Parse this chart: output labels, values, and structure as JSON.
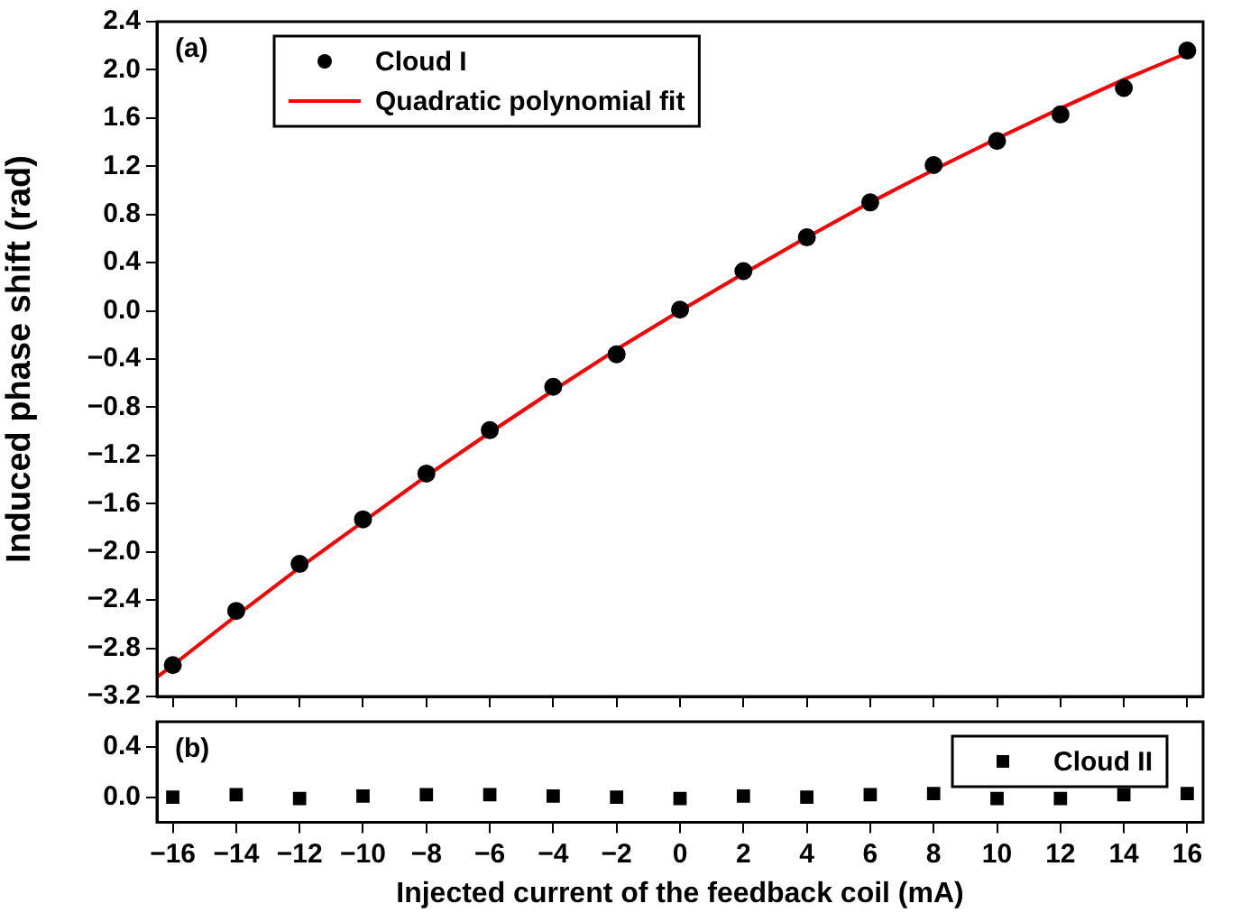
{
  "chart_data": [
    {
      "type": "scatter",
      "annotations": [
        "(a)"
      ],
      "ylabel": "Induced phase shift (rad)",
      "xlim": [
        -16.5,
        16.5
      ],
      "xticks": [
        -16,
        -14,
        -12,
        -10,
        -8,
        -6,
        -4,
        -2,
        0,
        2,
        4,
        6,
        8,
        10,
        12,
        14,
        16
      ],
      "ylim": [
        -3.2,
        2.4
      ],
      "yticks": [
        -3.2,
        -2.8,
        -2.4,
        {
          "value": -2,
          "label": "−2.0"
        },
        -1.6,
        -1.2,
        -0.8,
        -0.4,
        {
          "value": 0,
          "label": "0.0"
        },
        0.4,
        0.8,
        1.2,
        1.6,
        {
          "value": 2,
          "label": "2.0"
        },
        2.4
      ],
      "tick_labels": "y",
      "legend": "top",
      "grid": false,
      "series": [
        {
          "name": "Cloud I",
          "marker": "circle",
          "color": "#000000",
          "x": [
            -16,
            -14,
            -12,
            -10,
            -8,
            -6,
            -4,
            -2,
            0,
            2,
            4,
            6,
            8,
            10,
            12,
            14,
            16
          ],
          "values": [
            -2.94,
            -2.49,
            -2.1,
            -1.73,
            -1.35,
            -0.99,
            -0.63,
            -0.36,
            0.01,
            0.33,
            0.61,
            0.9,
            1.21,
            1.41,
            1.63,
            1.85,
            2.16
          ]
        },
        {
          "name": "Quadratic polynomial fit",
          "type": "line",
          "marker": "none",
          "color": "#ff0000",
          "x": [
            -16.5,
            -16,
            -14,
            -12,
            -10,
            -8,
            -6,
            -4,
            -2,
            0,
            2,
            4,
            6,
            8,
            10,
            12,
            14,
            16
          ],
          "values": [
            -3.04,
            -2.94,
            -2.53,
            -2.13,
            -1.75,
            -1.37,
            -1.01,
            -0.66,
            -0.32,
            0.0,
            0.31,
            0.61,
            0.9,
            1.17,
            1.43,
            1.68,
            1.92,
            2.14
          ]
        }
      ]
    },
    {
      "type": "scatter",
      "annotations": [
        "(b)"
      ],
      "xlabel": "Injected current of the feedback coil (mA)",
      "xlim": [
        -16.5,
        16.5
      ],
      "xticks": [
        -16,
        -14,
        -12,
        -10,
        -8,
        -6,
        -4,
        -2,
        0,
        2,
        4,
        6,
        8,
        10,
        12,
        14,
        16
      ],
      "ylim": [
        -0.2,
        0.6
      ],
      "yticks": [
        {
          "value": 0,
          "label": "0.0"
        },
        0.4
      ],
      "legend": "top right",
      "grid": false,
      "series": [
        {
          "name": "Cloud II",
          "marker": "square",
          "color": "#000000",
          "x": [
            -16,
            -14,
            -12,
            -10,
            -8,
            -6,
            -4,
            -2,
            0,
            2,
            4,
            6,
            8,
            10,
            12,
            14,
            16
          ],
          "values": [
            0.0,
            0.02,
            -0.01,
            0.01,
            0.02,
            0.02,
            0.01,
            0.0,
            -0.01,
            0.01,
            0.0,
            0.02,
            0.03,
            -0.01,
            -0.01,
            0.02,
            0.03
          ]
        }
      ]
    }
  ]
}
